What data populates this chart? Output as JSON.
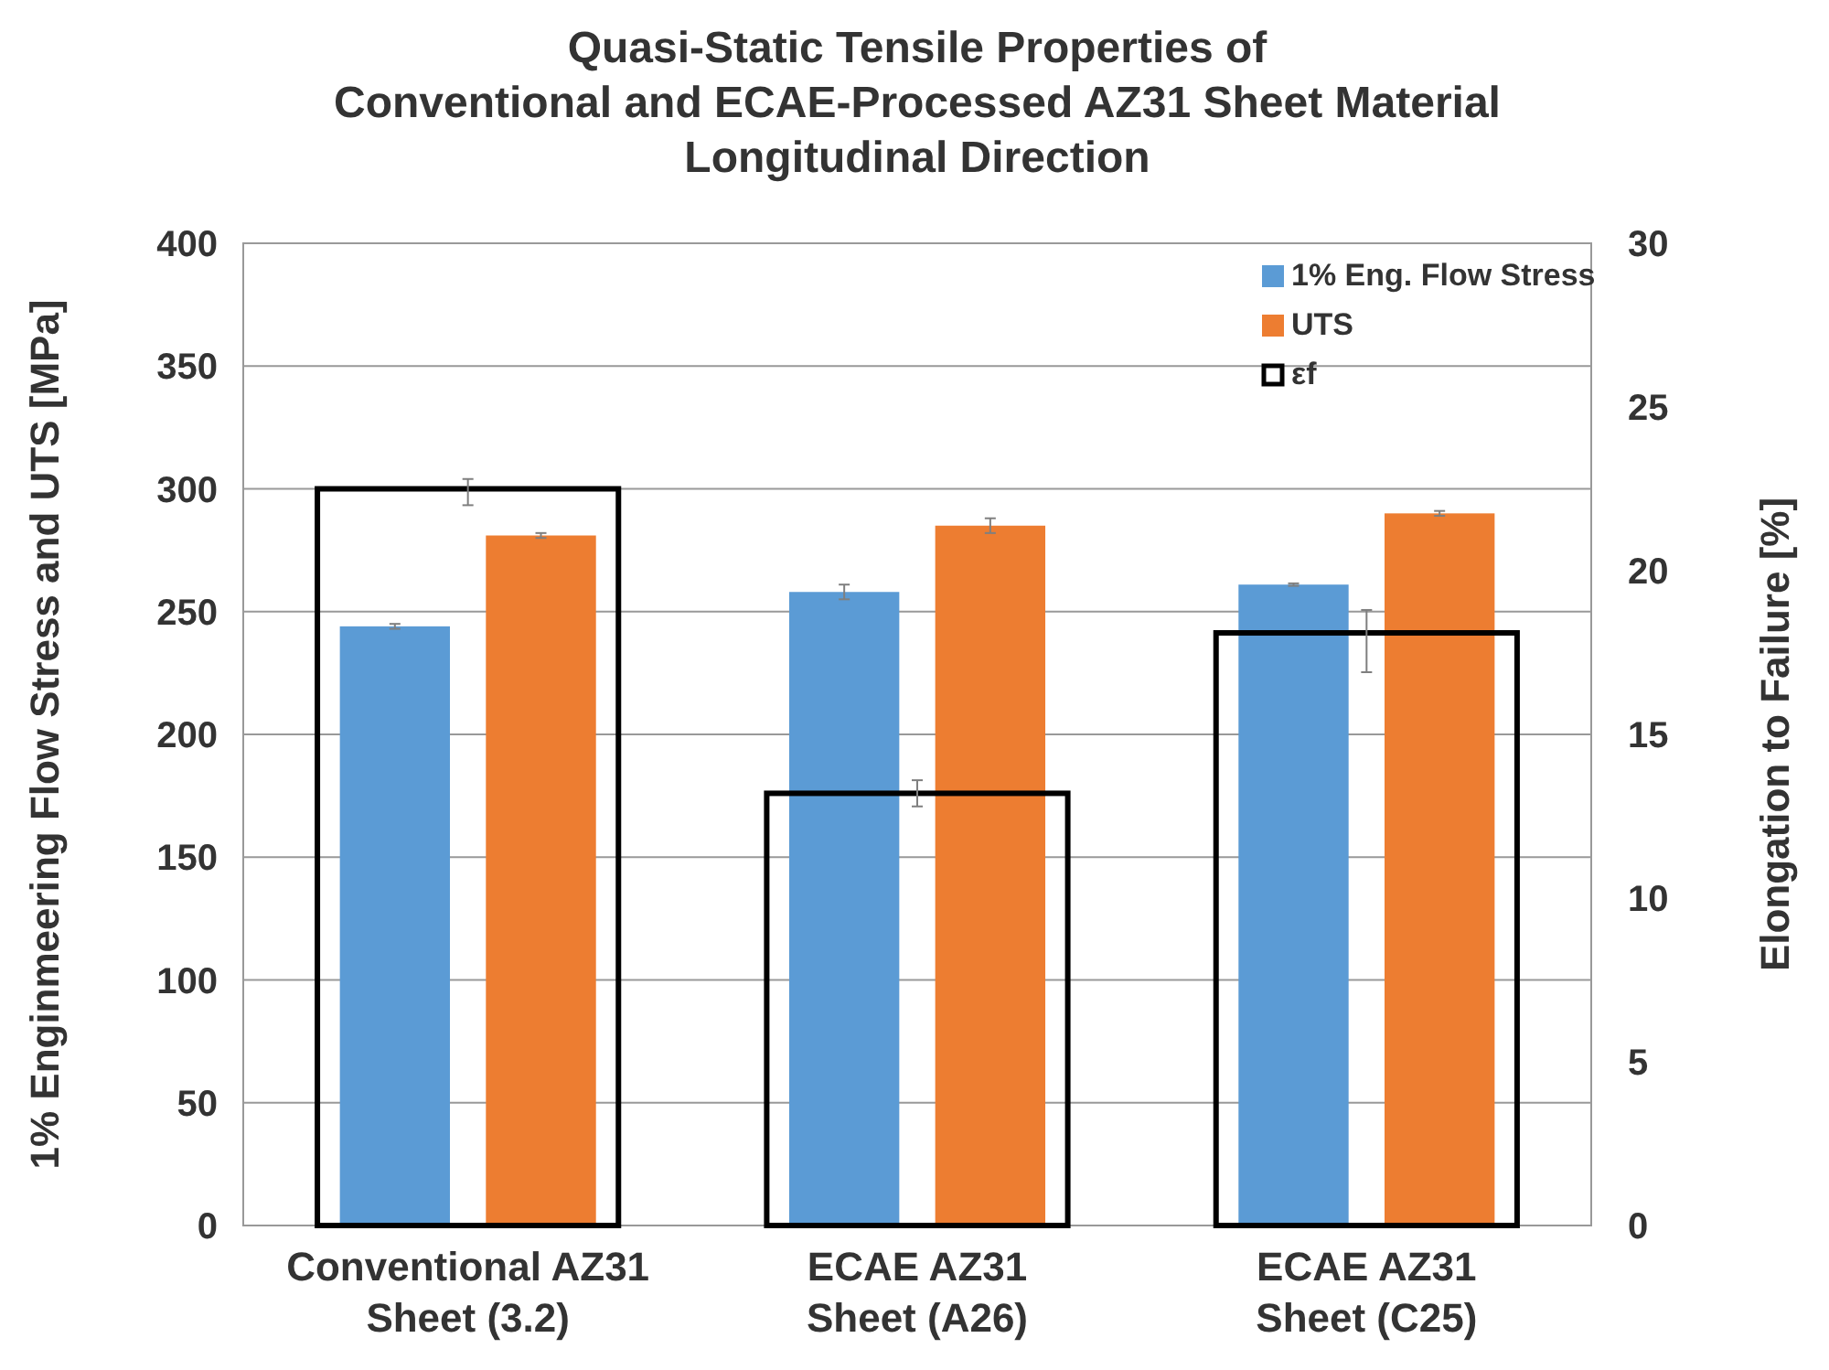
{
  "chart_data": {
    "type": "bar",
    "title": "Quasi-Static Tensile Properties of\nConventional and ECAE-Processed AZ31 Sheet Material\nLongitudinal Direction",
    "ylabel": "1% Enginmeering Flow Stress and UTS [MPa]",
    "y2label": "Elongation to Failure [%]",
    "categories": [
      "Conventional AZ31\nSheet (3.2)",
      "ECAE AZ31\nSheet (A26)",
      "ECAE AZ31\nSheet (C25)"
    ],
    "series": [
      {
        "name": "1% Eng. Flow Stress",
        "color": "#5b9bd5",
        "values": [
          244,
          258,
          261
        ],
        "errors": [
          1,
          3,
          0.5
        ]
      },
      {
        "name": "UTS",
        "color": "#ed7d31",
        "values": [
          281,
          285,
          290
        ],
        "errors": [
          1,
          3,
          1
        ]
      },
      {
        "name": "εf",
        "color": "#000000",
        "axis": "y2",
        "values": [
          22.5,
          13.2,
          18.1
        ],
        "errors": [
          [
            22.0,
            22.8
          ],
          [
            12.8,
            13.6
          ],
          [
            16.9,
            18.8
          ]
        ]
      }
    ],
    "ylim": [
      0,
      400
    ],
    "yticks": [
      0,
      50,
      100,
      150,
      200,
      250,
      300,
      350,
      400
    ],
    "y2lim": [
      0,
      30
    ],
    "y2ticks": [
      0,
      5,
      10,
      15,
      20,
      25,
      30
    ],
    "grid": "y",
    "legend": "top right"
  }
}
